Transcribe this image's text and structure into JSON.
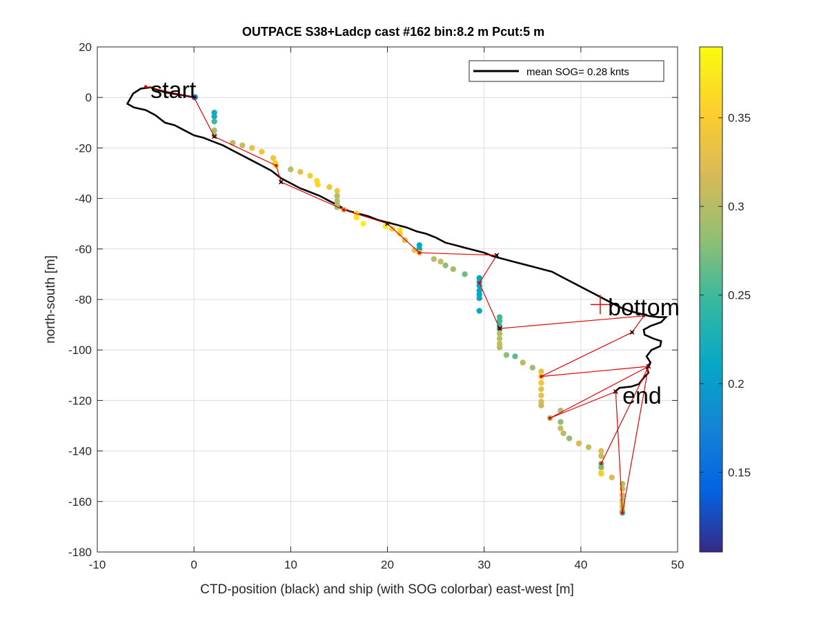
{
  "chart_data": {
    "type": "scatter",
    "title": "OUTPACE S38+Ladcp cast #162 bin:8.2 m  Pcut:5 m",
    "xlabel": "CTD-position (black) and ship (with SOG colorbar) east-west [m]",
    "ylabel": "north-south [m]",
    "xlim": [
      -10,
      50
    ],
    "ylim": [
      -180,
      20
    ],
    "xticks": [
      "-10",
      "0",
      "10",
      "20",
      "30",
      "40",
      "50"
    ],
    "yticks": [
      "20",
      "0",
      "-20",
      "-40",
      "-60",
      "-80",
      "-100",
      "-120",
      "-140",
      "-160",
      "-180"
    ],
    "grid": true,
    "legend": {
      "position": "top-right",
      "entries": [
        "mean SOG=  0.28 knts"
      ]
    },
    "colorbar": {
      "range": [
        0.105,
        0.39
      ],
      "ticks": [
        "0.15",
        "0.2",
        "0.25",
        "0.3",
        "0.35"
      ]
    },
    "annotations": [
      {
        "text": "start",
        "x": -4.5,
        "y": 3
      },
      {
        "text": "bottom",
        "x": 42.8,
        "y": -83
      },
      {
        "text": "end",
        "x": 44.3,
        "y": -118
      }
    ],
    "bottom_marker": {
      "x": 42,
      "y": -82
    },
    "ctd_track": [
      [
        0,
        0
      ],
      [
        -1,
        0.8
      ],
      [
        -3,
        2
      ],
      [
        -4.5,
        4
      ],
      [
        -5.5,
        3.5
      ],
      [
        -6.3,
        1.5
      ],
      [
        -6.9,
        -2.5
      ],
      [
        -6.2,
        -4
      ],
      [
        -5,
        -5
      ],
      [
        -4,
        -7
      ],
      [
        -3,
        -10
      ],
      [
        -2,
        -11
      ],
      [
        -1,
        -13
      ],
      [
        0,
        -15
      ],
      [
        1,
        -16
      ],
      [
        2,
        -17.5
      ],
      [
        3,
        -19
      ],
      [
        4,
        -21
      ],
      [
        5,
        -23
      ],
      [
        6,
        -25
      ],
      [
        7,
        -27
      ],
      [
        8,
        -29
      ],
      [
        9,
        -32
      ],
      [
        10,
        -34
      ],
      [
        11,
        -36
      ],
      [
        12,
        -37.5
      ],
      [
        13,
        -39
      ],
      [
        14,
        -41
      ],
      [
        15,
        -43
      ],
      [
        16,
        -45
      ],
      [
        17,
        -46
      ],
      [
        18,
        -47
      ],
      [
        19,
        -48.5
      ],
      [
        20,
        -49.5
      ],
      [
        21,
        -50.5
      ],
      [
        22,
        -51.5
      ],
      [
        23,
        -53
      ],
      [
        24,
        -54
      ],
      [
        25,
        -55.5
      ],
      [
        26,
        -57.5
      ],
      [
        27,
        -58.5
      ],
      [
        28,
        -59.5
      ],
      [
        29,
        -60.5
      ],
      [
        30,
        -61.5
      ],
      [
        31,
        -63
      ],
      [
        32,
        -64
      ],
      [
        33,
        -65
      ],
      [
        34,
        -66
      ],
      [
        35,
        -67
      ],
      [
        36,
        -68
      ],
      [
        37,
        -69
      ],
      [
        38,
        -71
      ],
      [
        39,
        -73
      ],
      [
        40,
        -75
      ],
      [
        41,
        -77
      ],
      [
        42,
        -79
      ],
      [
        43,
        -81
      ],
      [
        44,
        -83
      ],
      [
        45,
        -84.5
      ],
      [
        46,
        -85.5
      ],
      [
        47,
        -86.5
      ],
      [
        48,
        -87
      ],
      [
        48.8,
        -87
      ],
      [
        48.3,
        -89
      ],
      [
        47.2,
        -90.5
      ],
      [
        46.5,
        -92
      ],
      [
        46.6,
        -94
      ],
      [
        47.5,
        -95.5
      ],
      [
        48.3,
        -96.5
      ],
      [
        48.2,
        -98.5
      ],
      [
        47.3,
        -100
      ],
      [
        46.8,
        -102.5
      ],
      [
        47.2,
        -105
      ],
      [
        46.8,
        -107
      ],
      [
        47,
        -109
      ],
      [
        46.5,
        -111
      ],
      [
        46,
        -113.5
      ],
      [
        45.2,
        -114.5
      ],
      [
        44,
        -115
      ],
      [
        43.5,
        -116.5
      ]
    ],
    "ship_track": [
      [
        0,
        0
      ],
      [
        -5,
        4.3
      ],
      [
        0,
        0
      ],
      [
        2.1,
        -15.5
      ],
      [
        8.5,
        -27
      ],
      [
        9,
        -33.5
      ],
      [
        15.5,
        -44.5
      ],
      [
        20,
        -50
      ],
      [
        23.3,
        -61.5
      ],
      [
        31.3,
        -62.5
      ],
      [
        29.5,
        -73.5
      ],
      [
        31.6,
        -91.5
      ],
      [
        46.5,
        -86.5
      ],
      [
        45.3,
        -93
      ],
      [
        35.9,
        -110.5
      ],
      [
        47,
        -106.5
      ],
      [
        36.8,
        -127
      ],
      [
        43.6,
        -116.5
      ],
      [
        44.3,
        -164.5
      ],
      [
        47,
        -106.5
      ],
      [
        42.1,
        -145
      ]
    ],
    "ship_points": [
      [
        0.05,
        0,
        0.17
      ],
      [
        0.1,
        0.1,
        0.16
      ],
      [
        2.1,
        -6,
        0.22
      ],
      [
        2.1,
        -7.5,
        0.22
      ],
      [
        2.1,
        -9.5,
        0.25
      ],
      [
        2.1,
        -13,
        0.29
      ],
      [
        2.1,
        -15,
        0.29
      ],
      [
        4,
        -18,
        0.3
      ],
      [
        5,
        -19,
        0.31
      ],
      [
        6,
        -20,
        0.33
      ],
      [
        7,
        -21.5,
        0.34
      ],
      [
        8.2,
        -24,
        0.34
      ],
      [
        8.4,
        -26,
        0.35
      ],
      [
        8.5,
        -27,
        0.36
      ],
      [
        10,
        -28.5,
        0.3
      ],
      [
        11,
        -29.5,
        0.33
      ],
      [
        12,
        -31,
        0.35
      ],
      [
        12.7,
        -33,
        0.36
      ],
      [
        12.8,
        -34.5,
        0.36
      ],
      [
        14,
        -35.5,
        0.34
      ],
      [
        14.8,
        -37,
        0.34
      ],
      [
        14.8,
        -39,
        0.3
      ],
      [
        14.8,
        -41,
        0.3
      ],
      [
        14.8,
        -42.5,
        0.29
      ],
      [
        14.8,
        -43.5,
        0.29
      ],
      [
        15.5,
        -44.5,
        0.32
      ],
      [
        16.8,
        -46,
        0.35
      ],
      [
        16.8,
        -47.5,
        0.37
      ],
      [
        17.5,
        -50,
        0.38
      ],
      [
        19.8,
        -51,
        0.38
      ],
      [
        20.5,
        -52,
        0.35
      ],
      [
        21.3,
        -52.5,
        0.37
      ],
      [
        21.3,
        -54,
        0.35
      ],
      [
        21.8,
        -56.5,
        0.33
      ],
      [
        22.8,
        -60.5,
        0.33
      ],
      [
        23.3,
        -58.5,
        0.21
      ],
      [
        23.3,
        -60,
        0.21
      ],
      [
        23.3,
        -61.5,
        0.33
      ],
      [
        24.8,
        -64,
        0.3
      ],
      [
        25.5,
        -65,
        0.31
      ],
      [
        26,
        -66.5,
        0.28
      ],
      [
        26.8,
        -68,
        0.29
      ],
      [
        28,
        -70,
        0.27
      ],
      [
        29.5,
        -71.5,
        0.21
      ],
      [
        29.5,
        -73,
        0.21
      ],
      [
        29.5,
        -74.5,
        0.21
      ],
      [
        29.5,
        -76.5,
        0.21
      ],
      [
        29.5,
        -78,
        0.21
      ],
      [
        29.5,
        -79.5,
        0.21
      ],
      [
        29.5,
        -84.5,
        0.21
      ],
      [
        31.6,
        -87,
        0.25
      ],
      [
        31.6,
        -88.5,
        0.25
      ],
      [
        31.6,
        -90.5,
        0.25
      ],
      [
        31.6,
        -91.5,
        0.25
      ],
      [
        31.6,
        -93.5,
        0.3
      ],
      [
        31.6,
        -95.5,
        0.3
      ],
      [
        31.6,
        -97.5,
        0.31
      ],
      [
        31.6,
        -99,
        0.3
      ],
      [
        32.3,
        -102,
        0.28
      ],
      [
        33.2,
        -102.5,
        0.26
      ],
      [
        34,
        -105,
        0.3
      ],
      [
        35,
        -107,
        0.29
      ],
      [
        35.9,
        -108.5,
        0.33
      ],
      [
        35.9,
        -110.5,
        0.34
      ],
      [
        35.9,
        -113,
        0.34
      ],
      [
        35.9,
        -115.5,
        0.33
      ],
      [
        35.9,
        -118,
        0.33
      ],
      [
        35.9,
        -120.5,
        0.32
      ],
      [
        35.9,
        -122,
        0.31
      ],
      [
        36.8,
        -127,
        0.3
      ],
      [
        37.9,
        -124,
        0.3
      ],
      [
        37.9,
        -128.5,
        0.28
      ],
      [
        37.9,
        -131,
        0.31
      ],
      [
        38.2,
        -133,
        0.3
      ],
      [
        38.8,
        -135,
        0.28
      ],
      [
        39.8,
        -137,
        0.32
      ],
      [
        40.8,
        -138.5,
        0.31
      ],
      [
        42.1,
        -140,
        0.32
      ],
      [
        42.1,
        -142,
        0.31
      ],
      [
        42.1,
        -145,
        0.27
      ],
      [
        42.1,
        -146.5,
        0.27
      ],
      [
        42.1,
        -148.5,
        0.36
      ],
      [
        42.1,
        -149,
        0.35
      ],
      [
        43.2,
        -150.5,
        0.32
      ],
      [
        44.3,
        -153,
        0.3
      ],
      [
        44.3,
        -155,
        0.31
      ],
      [
        44.3,
        -157.5,
        0.31
      ],
      [
        44.3,
        -159.5,
        0.29
      ],
      [
        44.3,
        -160.5,
        0.33
      ],
      [
        44.3,
        -162,
        0.32
      ],
      [
        44.3,
        -163.5,
        0.32
      ],
      [
        44.3,
        -164.5,
        0.25
      ]
    ],
    "colors": {
      "ctd_track": "#000000",
      "ship_track": "#e60000",
      "grid": "#dcdcdc"
    }
  }
}
